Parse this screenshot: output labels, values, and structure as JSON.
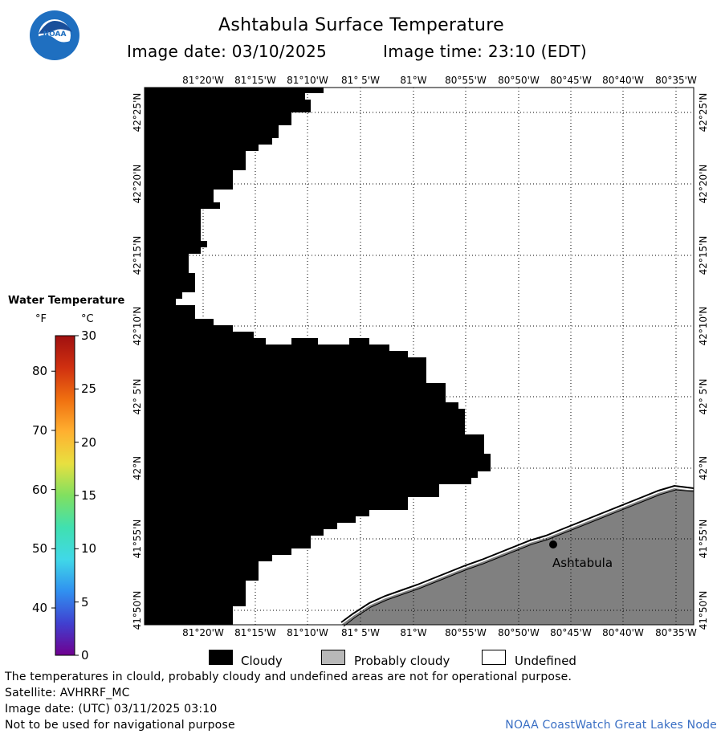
{
  "header": {
    "title": "Ashtabula Surface Temperature",
    "image_date_label": "Image date: 03/10/2025",
    "image_time_label": "Image time: 23:10 (EDT)"
  },
  "logo": {
    "text": "NOAA"
  },
  "map": {
    "lon_labels": [
      "81°20'W",
      "81°15'W",
      "81°10'W",
      "81° 5'W",
      "81°W",
      "80°55'W",
      "80°50'W",
      "80°45'W",
      "80°40'W",
      "80°35'W"
    ],
    "lat_labels": [
      "42°25'N",
      "42°20'N",
      "42°15'N",
      "42°10'N",
      "42° 5'N",
      "42°N",
      "41°55'N",
      "41°50'N"
    ],
    "place_label": "Ashtabula",
    "colors": {
      "cloudy": "#000000",
      "probably_cloudy": "#808080",
      "undefined": "#ffffff",
      "grid": "#000000"
    }
  },
  "legend": {
    "title": "Water Temperature",
    "unit_f": "°F",
    "unit_c": "°C",
    "fahrenheit_ticks": [
      "80",
      "70",
      "60",
      "50",
      "40"
    ],
    "celsius_ticks": [
      "30",
      "25",
      "20",
      "15",
      "10",
      "5",
      "0"
    ],
    "colorbar_stops": [
      "#a01010",
      "#e05010",
      "#ffa020",
      "#f0e040",
      "#90e060",
      "#40e0a0",
      "#40e0e0",
      "#3090f0",
      "#3050e0",
      "#6020c0",
      "#700090"
    ]
  },
  "key": {
    "cloudy": "Cloudy",
    "probably_cloudy": "Probably cloudy",
    "undefined": "Undefined"
  },
  "footer": {
    "line1": "The temperatures in clould, probably cloudy and undefined areas are not for operational purpose.",
    "line2": "Satellite: AVHRRF_MC",
    "line3": "Image date: (UTC) 03/11/2025  03:10",
    "line4": "Not to be used for navigational purpose",
    "credit": "NOAA CoastWatch Great Lakes Node"
  }
}
